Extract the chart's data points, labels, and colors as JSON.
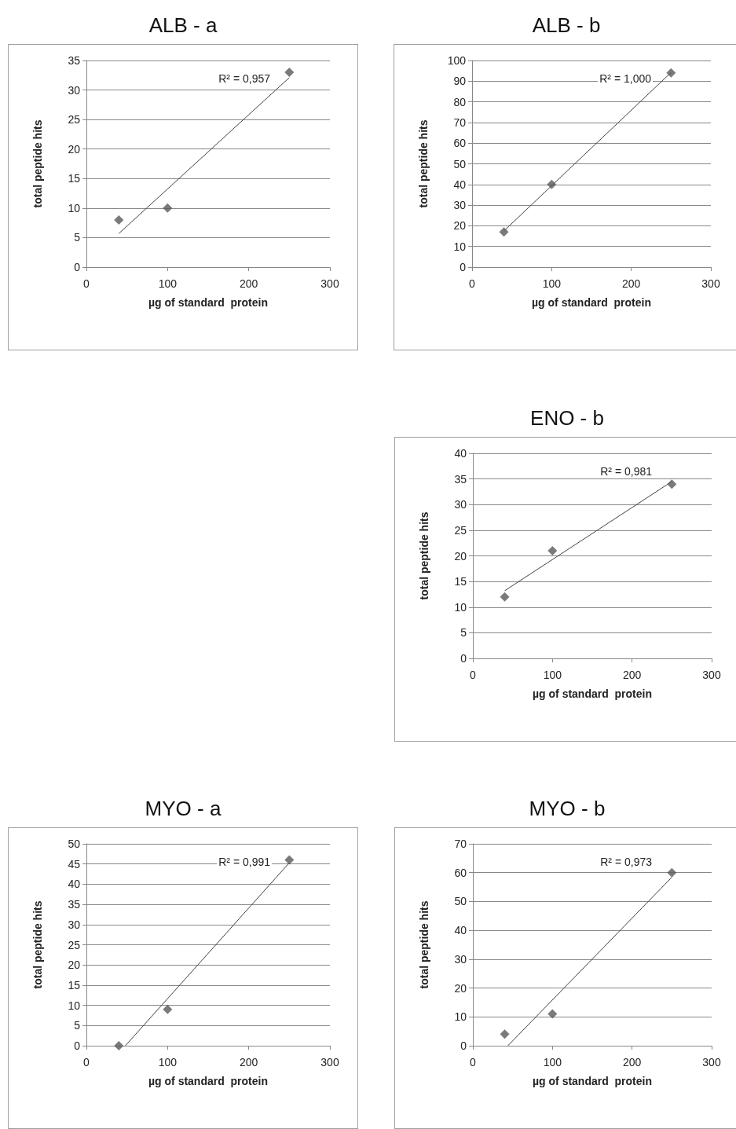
{
  "chart_data": [
    {
      "type": "scatter",
      "title": "ALB - a",
      "xlabel": "µg of standard  protein",
      "ylabel": "total peptide hits",
      "xlim": [
        0,
        300
      ],
      "xticks": [
        0,
        100,
        200,
        300
      ],
      "ylim": [
        0,
        35
      ],
      "yticks": [
        0,
        5,
        10,
        15,
        20,
        25,
        30,
        35
      ],
      "grid": "y",
      "marker": "diamond",
      "annotations": [
        "R² = 0,957"
      ],
      "series": [
        {
          "color": "#595959",
          "x": [
            40,
            100,
            250
          ],
          "values": [
            8,
            10,
            33
          ]
        },
        {
          "type": "line",
          "marker": "none",
          "color": "#404040",
          "x": [
            40,
            250
          ],
          "values": [
            5.7,
            32.1
          ]
        }
      ]
    },
    {
      "type": "scatter",
      "title": "ALB - b",
      "xlabel": "µg of standard  protein",
      "ylabel": "total peptide hits",
      "xlim": [
        0,
        300
      ],
      "xticks": [
        0,
        100,
        200,
        300
      ],
      "ylim": [
        0,
        100
      ],
      "yticks": [
        0,
        10,
        20,
        30,
        40,
        50,
        60,
        70,
        80,
        90,
        100
      ],
      "grid": "y",
      "marker": "diamond",
      "annotations": [
        "R² = 1,000"
      ],
      "series": [
        {
          "color": "#595959",
          "x": [
            40,
            100,
            250
          ],
          "values": [
            17,
            40,
            94
          ]
        },
        {
          "type": "line",
          "marker": "none",
          "color": "#404040",
          "x": [
            40,
            250
          ],
          "values": [
            17.5,
            94.2
          ]
        }
      ]
    },
    {
      "type": "scatter",
      "title": "ENO - b",
      "xlabel": "µg of standard  protein",
      "ylabel": "total peptide hits",
      "xlim": [
        0,
        300
      ],
      "xticks": [
        0,
        100,
        200,
        300
      ],
      "ylim": [
        0,
        40
      ],
      "yticks": [
        0,
        5,
        10,
        15,
        20,
        25,
        30,
        35,
        40
      ],
      "grid": "y",
      "marker": "diamond",
      "annotations": [
        "R² = 0,981"
      ],
      "series": [
        {
          "color": "#595959",
          "x": [
            40,
            100,
            250
          ],
          "values": [
            12,
            21,
            34
          ]
        },
        {
          "type": "line",
          "marker": "none",
          "color": "#404040",
          "x": [
            40,
            250
          ],
          "values": [
            13.2,
            34.5
          ]
        }
      ]
    },
    {
      "type": "scatter",
      "title": "MYO - a",
      "xlabel": "µg of standard  protein",
      "ylabel": "total peptide hits",
      "xlim": [
        0,
        300
      ],
      "xticks": [
        0,
        100,
        200,
        300
      ],
      "ylim": [
        0,
        50
      ],
      "yticks": [
        0,
        5,
        10,
        15,
        20,
        25,
        30,
        35,
        40,
        45,
        50
      ],
      "grid": "y",
      "marker": "diamond",
      "annotations": [
        "R² = 0,991"
      ],
      "series": [
        {
          "color": "#595959",
          "x": [
            40,
            100,
            250
          ],
          "values": [
            0,
            9,
            46
          ]
        },
        {
          "type": "line",
          "marker": "none",
          "color": "#404040",
          "x": [
            48,
            250
          ],
          "values": [
            0,
            45.3
          ]
        }
      ]
    },
    {
      "type": "scatter",
      "title": "MYO - b",
      "xlabel": "µg of standard  protein",
      "ylabel": "total peptide hits",
      "xlim": [
        0,
        300
      ],
      "xticks": [
        0,
        100,
        200,
        300
      ],
      "ylim": [
        0,
        70
      ],
      "yticks": [
        0,
        10,
        20,
        30,
        40,
        50,
        60,
        70
      ],
      "grid": "y",
      "marker": "diamond",
      "annotations": [
        "R² = 0,973"
      ],
      "series": [
        {
          "color": "#595959",
          "x": [
            40,
            100,
            250
          ],
          "values": [
            4,
            11,
            60
          ]
        },
        {
          "type": "line",
          "marker": "none",
          "color": "#404040",
          "x": [
            44,
            250
          ],
          "values": [
            0,
            58.4
          ]
        }
      ]
    }
  ]
}
